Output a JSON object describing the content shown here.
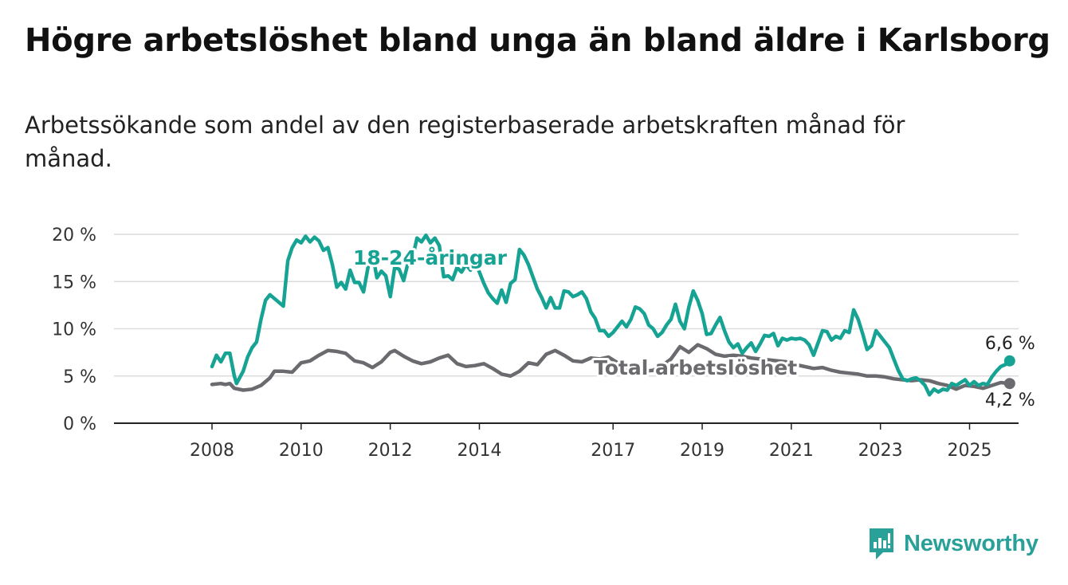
{
  "header": {
    "title": "Högre arbetslöshet bland unga än bland äldre i Karlsborg",
    "subtitle": "Arbetssökande som andel av den registerbaserade arbetskraften månad för månad."
  },
  "brand": {
    "name": "Newsworthy",
    "icon": "newsworthy-logo-icon",
    "color": "#2aa198"
  },
  "chart_data": {
    "type": "line",
    "x_tick_labels": [
      "2008",
      "2010",
      "2012",
      "2014",
      "2017",
      "2019",
      "2021",
      "2023",
      "2025"
    ],
    "x_tick_values": [
      2008,
      2010,
      2012,
      2014,
      2017,
      2019,
      2021,
      2023,
      2025
    ],
    "y_tick_labels": [
      "0 %",
      "5 %",
      "10 %",
      "15 %",
      "20 %"
    ],
    "y_tick_values": [
      0,
      5,
      10,
      15,
      20
    ],
    "xlim": [
      2005.8,
      2026.1
    ],
    "ylim": [
      0,
      20
    ],
    "grid": "horizontal",
    "series": [
      {
        "name": "18-24-åringar",
        "color": "#16a394",
        "end_label": "6,6 %",
        "points": [
          [
            2008.0,
            6.0
          ],
          [
            2008.1,
            7.2
          ],
          [
            2008.2,
            6.5
          ],
          [
            2008.3,
            7.4
          ],
          [
            2008.4,
            7.4
          ],
          [
            2008.5,
            5.0
          ],
          [
            2008.55,
            4.2
          ],
          [
            2008.7,
            5.5
          ],
          [
            2008.8,
            7.0
          ],
          [
            2008.9,
            8.0
          ],
          [
            2009.0,
            8.6
          ],
          [
            2009.1,
            11.0
          ],
          [
            2009.2,
            13.0
          ],
          [
            2009.3,
            13.6
          ],
          [
            2009.4,
            13.2
          ],
          [
            2009.5,
            12.8
          ],
          [
            2009.6,
            12.4
          ],
          [
            2009.7,
            17.2
          ],
          [
            2009.8,
            18.6
          ],
          [
            2009.9,
            19.4
          ],
          [
            2010.0,
            19.1
          ],
          [
            2010.1,
            19.8
          ],
          [
            2010.2,
            19.2
          ],
          [
            2010.3,
            19.7
          ],
          [
            2010.4,
            19.3
          ],
          [
            2010.5,
            18.3
          ],
          [
            2010.6,
            18.6
          ],
          [
            2010.7,
            16.8
          ],
          [
            2010.8,
            14.4
          ],
          [
            2010.9,
            14.9
          ],
          [
            2011.0,
            14.2
          ],
          [
            2011.1,
            16.2
          ],
          [
            2011.2,
            14.9
          ],
          [
            2011.3,
            14.9
          ],
          [
            2011.4,
            13.9
          ],
          [
            2011.5,
            16.5
          ],
          [
            2011.6,
            18.0
          ],
          [
            2011.7,
            15.4
          ],
          [
            2011.8,
            16.1
          ],
          [
            2011.9,
            15.6
          ],
          [
            2012.0,
            13.4
          ],
          [
            2012.1,
            16.5
          ],
          [
            2012.2,
            16.3
          ],
          [
            2012.3,
            15.1
          ],
          [
            2012.4,
            17.0
          ],
          [
            2012.5,
            17.5
          ],
          [
            2012.6,
            19.6
          ],
          [
            2012.7,
            19.2
          ],
          [
            2012.8,
            19.9
          ],
          [
            2012.9,
            19.1
          ],
          [
            2013.0,
            19.6
          ],
          [
            2013.1,
            18.8
          ],
          [
            2013.2,
            15.5
          ],
          [
            2013.3,
            15.6
          ],
          [
            2013.4,
            15.2
          ],
          [
            2013.5,
            16.5
          ],
          [
            2013.6,
            16.0
          ],
          [
            2013.7,
            16.8
          ],
          [
            2013.8,
            16.2
          ],
          [
            2013.9,
            17.0
          ],
          [
            2014.0,
            16.0
          ],
          [
            2014.1,
            14.8
          ],
          [
            2014.2,
            13.8
          ],
          [
            2014.3,
            13.2
          ],
          [
            2014.4,
            12.7
          ],
          [
            2014.5,
            14.1
          ],
          [
            2014.6,
            12.8
          ],
          [
            2014.7,
            14.8
          ],
          [
            2014.8,
            15.2
          ],
          [
            2014.9,
            18.4
          ],
          [
            2015.0,
            17.8
          ],
          [
            2015.1,
            16.8
          ],
          [
            2015.2,
            15.5
          ],
          [
            2015.3,
            14.2
          ],
          [
            2015.4,
            13.3
          ],
          [
            2015.5,
            12.2
          ],
          [
            2015.6,
            13.3
          ],
          [
            2015.7,
            12.2
          ],
          [
            2015.8,
            12.2
          ],
          [
            2015.9,
            14.0
          ],
          [
            2016.0,
            13.9
          ],
          [
            2016.1,
            13.4
          ],
          [
            2016.2,
            13.6
          ],
          [
            2016.3,
            13.9
          ],
          [
            2016.4,
            13.2
          ],
          [
            2016.5,
            11.8
          ],
          [
            2016.6,
            11.1
          ],
          [
            2016.7,
            9.8
          ],
          [
            2016.8,
            9.8
          ],
          [
            2016.9,
            9.2
          ],
          [
            2017.0,
            9.6
          ],
          [
            2017.1,
            10.2
          ],
          [
            2017.2,
            10.8
          ],
          [
            2017.3,
            10.2
          ],
          [
            2017.4,
            11.0
          ],
          [
            2017.5,
            12.3
          ],
          [
            2017.6,
            12.1
          ],
          [
            2017.7,
            11.6
          ],
          [
            2017.8,
            10.4
          ],
          [
            2017.9,
            10.0
          ],
          [
            2018.0,
            9.2
          ],
          [
            2018.1,
            9.6
          ],
          [
            2018.2,
            10.4
          ],
          [
            2018.3,
            11.0
          ],
          [
            2018.4,
            12.6
          ],
          [
            2018.5,
            10.8
          ],
          [
            2018.6,
            10.0
          ],
          [
            2018.7,
            12.3
          ],
          [
            2018.8,
            14.0
          ],
          [
            2018.9,
            13.0
          ],
          [
            2019.0,
            11.6
          ],
          [
            2019.1,
            9.4
          ],
          [
            2019.2,
            9.5
          ],
          [
            2019.3,
            10.4
          ],
          [
            2019.4,
            11.2
          ],
          [
            2019.5,
            9.8
          ],
          [
            2019.6,
            8.6
          ],
          [
            2019.7,
            8.0
          ],
          [
            2019.8,
            8.4
          ],
          [
            2019.9,
            7.4
          ],
          [
            2020.0,
            8.0
          ],
          [
            2020.1,
            8.5
          ],
          [
            2020.2,
            7.6
          ],
          [
            2020.3,
            8.4
          ],
          [
            2020.4,
            9.3
          ],
          [
            2020.5,
            9.2
          ],
          [
            2020.6,
            9.5
          ],
          [
            2020.7,
            8.2
          ],
          [
            2020.8,
            9.0
          ],
          [
            2020.9,
            8.8
          ],
          [
            2021.0,
            9.0
          ],
          [
            2021.1,
            8.9
          ],
          [
            2021.2,
            9.0
          ],
          [
            2021.3,
            8.8
          ],
          [
            2021.4,
            8.3
          ],
          [
            2021.5,
            7.2
          ],
          [
            2021.6,
            8.5
          ],
          [
            2021.7,
            9.8
          ],
          [
            2021.8,
            9.7
          ],
          [
            2021.9,
            8.8
          ],
          [
            2022.0,
            9.2
          ],
          [
            2022.1,
            9.0
          ],
          [
            2022.2,
            9.8
          ],
          [
            2022.3,
            9.6
          ],
          [
            2022.4,
            12.0
          ],
          [
            2022.5,
            11.0
          ],
          [
            2022.6,
            9.5
          ],
          [
            2022.7,
            7.8
          ],
          [
            2022.8,
            8.2
          ],
          [
            2022.9,
            9.8
          ],
          [
            2023.0,
            9.2
          ],
          [
            2023.1,
            8.6
          ],
          [
            2023.2,
            8.0
          ],
          [
            2023.3,
            6.8
          ],
          [
            2023.4,
            5.6
          ],
          [
            2023.5,
            4.7
          ],
          [
            2023.6,
            4.5
          ],
          [
            2023.7,
            4.7
          ],
          [
            2023.8,
            4.8
          ],
          [
            2023.9,
            4.5
          ],
          [
            2024.0,
            4.0
          ],
          [
            2024.1,
            3.0
          ],
          [
            2024.2,
            3.6
          ],
          [
            2024.3,
            3.3
          ],
          [
            2024.4,
            3.6
          ],
          [
            2024.5,
            3.5
          ],
          [
            2024.6,
            4.2
          ],
          [
            2024.7,
            4.0
          ],
          [
            2024.8,
            4.3
          ],
          [
            2024.9,
            4.6
          ],
          [
            2025.0,
            4.0
          ],
          [
            2025.1,
            4.4
          ],
          [
            2025.2,
            4.0
          ],
          [
            2025.3,
            4.2
          ],
          [
            2025.4,
            4.1
          ],
          [
            2025.5,
            4.9
          ],
          [
            2025.6,
            5.5
          ],
          [
            2025.7,
            6.0
          ],
          [
            2025.8,
            6.2
          ],
          [
            2025.9,
            6.6
          ]
        ]
      },
      {
        "name": "Total arbetslöshet",
        "color": "#6a6a6f",
        "end_label": "4,2 %",
        "points": [
          [
            2008.0,
            4.1
          ],
          [
            2008.2,
            4.2
          ],
          [
            2008.3,
            4.1
          ],
          [
            2008.4,
            4.2
          ],
          [
            2008.5,
            3.7
          ],
          [
            2008.7,
            3.5
          ],
          [
            2008.9,
            3.6
          ],
          [
            2009.1,
            4.0
          ],
          [
            2009.3,
            4.8
          ],
          [
            2009.4,
            5.5
          ],
          [
            2009.6,
            5.5
          ],
          [
            2009.8,
            5.4
          ],
          [
            2010.0,
            6.4
          ],
          [
            2010.2,
            6.6
          ],
          [
            2010.4,
            7.2
          ],
          [
            2010.6,
            7.7
          ],
          [
            2010.8,
            7.6
          ],
          [
            2011.0,
            7.4
          ],
          [
            2011.2,
            6.6
          ],
          [
            2011.4,
            6.4
          ],
          [
            2011.6,
            5.9
          ],
          [
            2011.8,
            6.5
          ],
          [
            2012.0,
            7.5
          ],
          [
            2012.1,
            7.7
          ],
          [
            2012.3,
            7.1
          ],
          [
            2012.5,
            6.6
          ],
          [
            2012.7,
            6.3
          ],
          [
            2012.9,
            6.5
          ],
          [
            2013.1,
            6.9
          ],
          [
            2013.3,
            7.2
          ],
          [
            2013.5,
            6.3
          ],
          [
            2013.7,
            6.0
          ],
          [
            2013.9,
            6.1
          ],
          [
            2014.1,
            6.3
          ],
          [
            2014.3,
            5.8
          ],
          [
            2014.5,
            5.2
          ],
          [
            2014.7,
            5.0
          ],
          [
            2014.9,
            5.5
          ],
          [
            2015.1,
            6.4
          ],
          [
            2015.3,
            6.2
          ],
          [
            2015.5,
            7.3
          ],
          [
            2015.7,
            7.7
          ],
          [
            2015.9,
            7.2
          ],
          [
            2016.1,
            6.6
          ],
          [
            2016.3,
            6.5
          ],
          [
            2016.5,
            6.9
          ],
          [
            2016.7,
            6.8
          ],
          [
            2016.9,
            7.0
          ],
          [
            2017.1,
            6.4
          ],
          [
            2017.3,
            5.8
          ],
          [
            2017.5,
            5.7
          ],
          [
            2017.7,
            5.5
          ],
          [
            2017.9,
            5.6
          ],
          [
            2018.1,
            6.1
          ],
          [
            2018.3,
            6.8
          ],
          [
            2018.5,
            8.1
          ],
          [
            2018.7,
            7.5
          ],
          [
            2018.9,
            8.3
          ],
          [
            2019.1,
            7.9
          ],
          [
            2019.3,
            7.3
          ],
          [
            2019.5,
            7.1
          ],
          [
            2019.7,
            7.2
          ],
          [
            2019.9,
            7.1
          ],
          [
            2020.1,
            6.9
          ],
          [
            2020.3,
            6.8
          ],
          [
            2020.5,
            6.7
          ],
          [
            2020.7,
            6.6
          ],
          [
            2020.9,
            6.5
          ],
          [
            2021.1,
            6.2
          ],
          [
            2021.3,
            6.0
          ],
          [
            2021.5,
            5.8
          ],
          [
            2021.7,
            5.9
          ],
          [
            2021.9,
            5.6
          ],
          [
            2022.1,
            5.4
          ],
          [
            2022.3,
            5.3
          ],
          [
            2022.5,
            5.2
          ],
          [
            2022.7,
            5.0
          ],
          [
            2022.9,
            5.0
          ],
          [
            2023.1,
            4.9
          ],
          [
            2023.3,
            4.7
          ],
          [
            2023.5,
            4.6
          ],
          [
            2023.7,
            4.5
          ],
          [
            2023.9,
            4.6
          ],
          [
            2024.1,
            4.5
          ],
          [
            2024.3,
            4.2
          ],
          [
            2024.5,
            4.0
          ],
          [
            2024.7,
            3.6
          ],
          [
            2024.9,
            4.0
          ],
          [
            2025.1,
            3.9
          ],
          [
            2025.3,
            3.7
          ],
          [
            2025.5,
            4.0
          ],
          [
            2025.7,
            4.3
          ],
          [
            2025.9,
            4.2
          ]
        ]
      }
    ]
  }
}
